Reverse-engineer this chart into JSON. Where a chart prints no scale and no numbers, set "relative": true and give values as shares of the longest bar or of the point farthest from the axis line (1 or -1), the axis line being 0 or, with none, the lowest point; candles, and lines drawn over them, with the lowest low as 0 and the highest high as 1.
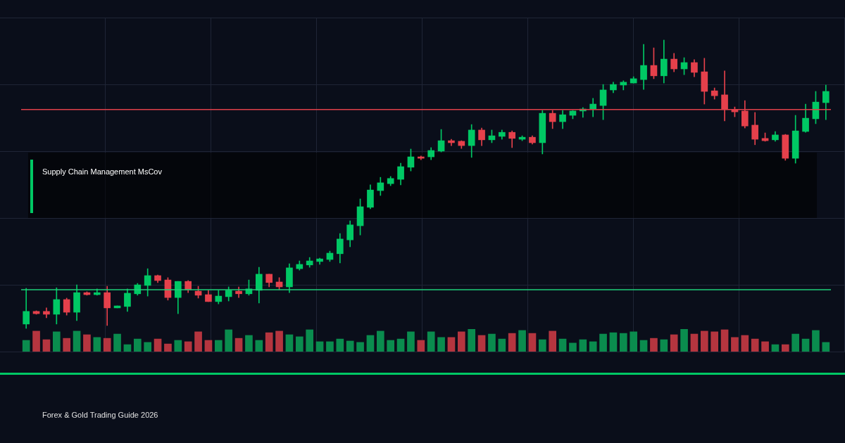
{
  "chart_data": [
    {
      "type": "candlestick",
      "title": "Supply Chain Management MsCov",
      "annotations": [
        "Forex & Gold Trading Guide 2026"
      ],
      "relative": true,
      "categories": [
        null,
        null,
        null,
        null,
        null,
        null,
        null,
        null,
        null,
        null,
        null,
        null,
        null,
        null,
        null,
        null,
        null,
        null,
        null,
        null,
        null,
        null,
        null,
        null,
        null,
        null,
        null,
        null,
        null,
        null,
        null,
        null,
        null,
        null,
        null,
        null,
        null,
        null,
        null,
        null,
        null,
        null,
        null,
        null,
        null,
        null,
        null,
        null,
        null,
        null,
        null,
        null,
        null,
        null,
        null,
        null,
        null,
        null,
        null,
        null,
        null,
        null,
        null,
        null,
        null,
        null,
        null,
        null,
        null,
        null,
        null,
        null,
        null,
        null,
        null,
        null,
        null,
        null,
        null,
        null
      ],
      "ohlc": [
        [
          0.015,
          0.139,
          0,
          0.059
        ],
        [
          0.059,
          0.061,
          0.049,
          0.051
        ],
        [
          0.059,
          0.071,
          0.037,
          0.049
        ],
        [
          0.049,
          0.141,
          0.015,
          0.1
        ],
        [
          0.1,
          0.105,
          0.046,
          0.056
        ],
        [
          0.056,
          0.151,
          0.027,
          0.124
        ],
        [
          0.124,
          0.127,
          0.115,
          0.117
        ],
        [
          0.117,
          0.137,
          0.115,
          0.124
        ],
        [
          0.124,
          0.146,
          0.01,
          0.071
        ],
        [
          0.071,
          0.078,
          0.071,
          0.078
        ],
        [
          0.076,
          0.137,
          0.059,
          0.122
        ],
        [
          0.12,
          0.156,
          0.115,
          0.151
        ],
        [
          0.149,
          0.207,
          0.112,
          0.183
        ],
        [
          0.183,
          0.185,
          0.159,
          0.166
        ],
        [
          0.168,
          0.176,
          0.098,
          0.107
        ],
        [
          0.107,
          0.163,
          0.051,
          0.163
        ],
        [
          0.163,
          0.166,
          0.124,
          0.134
        ],
        [
          0.129,
          0.146,
          0.105,
          0.115
        ],
        [
          0.117,
          0.132,
          0.093,
          0.093
        ],
        [
          0.093,
          0.132,
          0.085,
          0.112
        ],
        [
          0.11,
          0.144,
          0.095,
          0.132
        ],
        [
          0.129,
          0.144,
          0.107,
          0.12
        ],
        [
          0.12,
          0.168,
          0.115,
          0.137
        ],
        [
          0.132,
          0.212,
          0.088,
          0.188
        ],
        [
          0.188,
          0.188,
          0.144,
          0.159
        ],
        [
          0.161,
          0.176,
          0.134,
          0.144
        ],
        [
          0.144,
          0.224,
          0.124,
          0.21
        ],
        [
          0.207,
          0.234,
          0.202,
          0.222
        ],
        [
          0.22,
          0.246,
          0.212,
          0.234
        ],
        [
          0.232,
          0.244,
          0.222,
          0.241
        ],
        [
          0.239,
          0.268,
          0.232,
          0.261
        ],
        [
          0.259,
          0.329,
          0.227,
          0.31
        ],
        [
          0.307,
          0.373,
          0.283,
          0.359
        ],
        [
          0.356,
          0.449,
          0.324,
          0.422
        ],
        [
          0.42,
          0.498,
          0.415,
          0.48
        ],
        [
          0.478,
          0.524,
          0.461,
          0.505
        ],
        [
          0.502,
          0.527,
          0.495,
          0.52
        ],
        [
          0.517,
          0.573,
          0.498,
          0.561
        ],
        [
          0.559,
          0.622,
          0.546,
          0.595
        ],
        [
          0.595,
          0.598,
          0.585,
          0.59
        ],
        [
          0.595,
          0.627,
          0.585,
          0.617
        ],
        [
          0.615,
          0.69,
          0.612,
          0.651
        ],
        [
          0.651,
          0.656,
          0.634,
          0.644
        ],
        [
          0.649,
          0.651,
          0.624,
          0.634
        ],
        [
          0.634,
          0.707,
          0.593,
          0.688
        ],
        [
          0.688,
          0.695,
          0.634,
          0.654
        ],
        [
          0.654,
          0.688,
          0.644,
          0.668
        ],
        [
          0.666,
          0.688,
          0.656,
          0.68
        ],
        [
          0.68,
          0.685,
          0.627,
          0.659
        ],
        [
          0.656,
          0.668,
          0.651,
          0.663
        ],
        [
          0.663,
          0.668,
          0.639,
          0.644
        ],
        [
          0.644,
          0.756,
          0.605,
          0.746
        ],
        [
          0.746,
          0.756,
          0.693,
          0.717
        ],
        [
          0.717,
          0.756,
          0.693,
          0.741
        ],
        [
          0.739,
          0.756,
          0.727,
          0.754
        ],
        [
          0.754,
          0.766,
          0.732,
          0.761
        ],
        [
          0.761,
          0.798,
          0.734,
          0.778
        ],
        [
          0.773,
          0.846,
          0.724,
          0.827
        ],
        [
          0.827,
          0.854,
          0.817,
          0.846
        ],
        [
          0.844,
          0.859,
          0.827,
          0.854
        ],
        [
          0.851,
          0.873,
          0.851,
          0.866
        ],
        [
          0.863,
          0.985,
          0.829,
          0.912
        ],
        [
          0.912,
          0.973,
          0.866,
          0.876
        ],
        [
          0.876,
          1,
          0.851,
          0.934
        ],
        [
          0.934,
          0.954,
          0.89,
          0.9
        ],
        [
          0.9,
          0.939,
          0.88,
          0.922
        ],
        [
          0.922,
          0.932,
          0.873,
          0.888
        ],
        [
          0.89,
          0.937,
          0.778,
          0.822
        ],
        [
          0.824,
          0.834,
          0.795,
          0.807
        ],
        [
          0.81,
          0.893,
          0.72,
          0.759
        ],
        [
          0.759,
          0.768,
          0.734,
          0.751
        ],
        [
          0.754,
          0.79,
          0.695,
          0.702
        ],
        [
          0.705,
          0.749,
          0.637,
          0.656
        ],
        [
          0.659,
          0.678,
          0.649,
          0.651
        ],
        [
          0.654,
          0.683,
          0.649,
          0.671
        ],
        [
          0.671,
          0.673,
          0.583,
          0.59
        ],
        [
          0.59,
          0.739,
          0.573,
          0.685
        ],
        [
          0.683,
          0.778,
          0.68,
          0.729
        ],
        [
          0.727,
          0.822,
          0.71,
          0.785
        ],
        [
          0.783,
          0.844,
          0.724,
          0.822
        ]
      ],
      "colors": [
        "#00c864",
        "#e5404b",
        "#e5404b",
        "#00c864",
        "#e5404b",
        "#00c864",
        "#e5404b",
        "#00c864",
        "#e5404b",
        "#00c864",
        "#00c864",
        "#00c864",
        "#00c864",
        "#e5404b",
        "#e5404b",
        "#00c864",
        "#e5404b",
        "#e5404b",
        "#e5404b",
        "#00c864",
        "#00c864",
        "#e5404b",
        "#00c864",
        "#00c864",
        "#e5404b",
        "#e5404b",
        "#00c864",
        "#00c864",
        "#00c864",
        "#00c864",
        "#00c864",
        "#00c864",
        "#00c864",
        "#00c864",
        "#00c864",
        "#00c864",
        "#00c864",
        "#00c864",
        "#00c864",
        "#e5404b",
        "#00c864",
        "#00c864",
        "#e5404b",
        "#e5404b",
        "#00c864",
        "#e5404b",
        "#00c864",
        "#00c864",
        "#e5404b",
        "#00c864",
        "#e5404b",
        "#00c864",
        "#e5404b",
        "#00c864",
        "#00c864",
        "#00c864",
        "#00c864",
        "#00c864",
        "#00c864",
        "#00c864",
        "#00c864",
        "#00c864",
        "#e5404b",
        "#00c864",
        "#e5404b",
        "#00c864",
        "#e5404b",
        "#e5404b",
        "#e5404b",
        "#e5404b",
        "#e5404b",
        "#e5404b",
        "#e5404b",
        "#e5404b",
        "#00c864",
        "#e5404b",
        "#00c864",
        "#00c864",
        "#00c864",
        "#00c864"
      ],
      "ref_lines": [
        {
          "axis": "y",
          "value": 0.759,
          "color": "#e0404a"
        },
        {
          "axis": "y",
          "value": 0.134,
          "color": "#1fcf7a"
        }
      ]
    },
    {
      "type": "bar",
      "relative": true,
      "categories": [
        null,
        null,
        null,
        null,
        null,
        null,
        null,
        null,
        null,
        null,
        null,
        null,
        null,
        null,
        null,
        null,
        null,
        null,
        null,
        null,
        null,
        null,
        null,
        null,
        null,
        null,
        null,
        null,
        null,
        null,
        null,
        null,
        null,
        null,
        null,
        null,
        null,
        null,
        null,
        null,
        null,
        null,
        null,
        null,
        null,
        null,
        null,
        null,
        null,
        null,
        null,
        null,
        null,
        null,
        null,
        null,
        null,
        null,
        null,
        null,
        null,
        null,
        null,
        null,
        null,
        null,
        null,
        null,
        null,
        null,
        null,
        null,
        null,
        null,
        null,
        null,
        null,
        null,
        null,
        null
      ],
      "values": [
        0.5,
        0.91,
        0.53,
        0.88,
        0.59,
        0.91,
        0.75,
        0.63,
        0.59,
        0.78,
        0.31,
        0.56,
        0.41,
        0.56,
        0.34,
        0.5,
        0.44,
        0.88,
        0.5,
        0.5,
        0.97,
        0.59,
        0.72,
        0.5,
        0.84,
        0.91,
        0.75,
        0.66,
        0.97,
        0.44,
        0.44,
        0.56,
        0.47,
        0.41,
        0.72,
        0.91,
        0.5,
        0.56,
        0.88,
        0.5,
        0.88,
        0.63,
        0.63,
        0.88,
        1,
        0.72,
        0.78,
        0.56,
        0.81,
        0.94,
        0.81,
        0.53,
        0.91,
        0.56,
        0.38,
        0.53,
        0.44,
        0.78,
        0.84,
        0.81,
        0.88,
        0.5,
        0.59,
        0.53,
        0.75,
        1,
        0.78,
        0.91,
        0.88,
        0.97,
        0.63,
        0.72,
        0.56,
        0.44,
        0.31,
        0.31,
        0.78,
        0.56,
        0.94,
        0.41
      ],
      "colors": [
        "#0a8c4e",
        "#b5353f",
        "#b5353f",
        "#0a8c4e",
        "#b5353f",
        "#0a8c4e",
        "#b5353f",
        "#0a8c4e",
        "#b5353f",
        "#0a8c4e",
        "#0a8c4e",
        "#0a8c4e",
        "#0a8c4e",
        "#b5353f",
        "#b5353f",
        "#0a8c4e",
        "#b5353f",
        "#b5353f",
        "#b5353f",
        "#0a8c4e",
        "#0a8c4e",
        "#b5353f",
        "#0a8c4e",
        "#0a8c4e",
        "#b5353f",
        "#b5353f",
        "#0a8c4e",
        "#0a8c4e",
        "#0a8c4e",
        "#0a8c4e",
        "#0a8c4e",
        "#0a8c4e",
        "#0a8c4e",
        "#0a8c4e",
        "#0a8c4e",
        "#0a8c4e",
        "#0a8c4e",
        "#0a8c4e",
        "#0a8c4e",
        "#b5353f",
        "#0a8c4e",
        "#0a8c4e",
        "#b5353f",
        "#b5353f",
        "#0a8c4e",
        "#b5353f",
        "#0a8c4e",
        "#0a8c4e",
        "#b5353f",
        "#0a8c4e",
        "#b5353f",
        "#0a8c4e",
        "#b5353f",
        "#0a8c4e",
        "#0a8c4e",
        "#0a8c4e",
        "#0a8c4e",
        "#0a8c4e",
        "#0a8c4e",
        "#0a8c4e",
        "#0a8c4e",
        "#0a8c4e",
        "#b5353f",
        "#0a8c4e",
        "#b5353f",
        "#0a8c4e",
        "#b5353f",
        "#b5353f",
        "#b5353f",
        "#b5353f",
        "#b5353f",
        "#b5353f",
        "#b5353f",
        "#b5353f",
        "#0a8c4e",
        "#b5353f",
        "#0a8c4e",
        "#0a8c4e",
        "#0a8c4e",
        "#0a8c4e"
      ]
    }
  ]
}
